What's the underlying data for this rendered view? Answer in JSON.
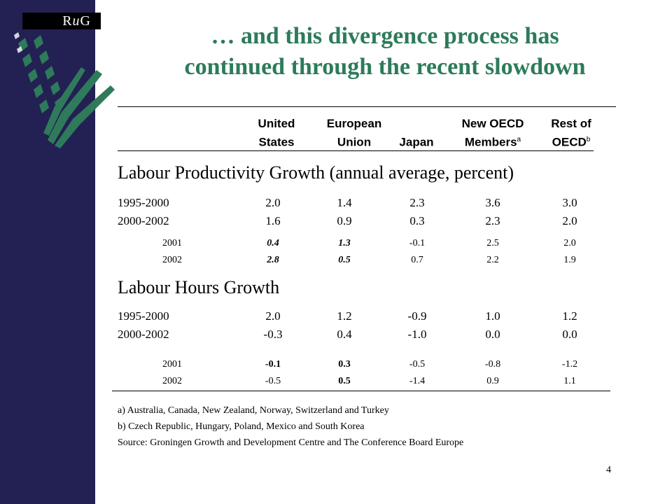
{
  "logo": {
    "text_prefix": "R",
    "text_italic": "u",
    "text_suffix": "G"
  },
  "title": {
    "line1": "… and this divergence process has",
    "line2": "continued through the recent slowdown"
  },
  "columns": [
    {
      "line1": "United",
      "line2": "States",
      "sup": ""
    },
    {
      "line1": "European",
      "line2": "Union",
      "sup": ""
    },
    {
      "line1": "",
      "line2": "Japan",
      "sup": ""
    },
    {
      "line1": "New OECD",
      "line2": "Members",
      "sup": "a"
    },
    {
      "line1": "Rest of",
      "line2": "OECD",
      "sup": "b"
    }
  ],
  "sections": [
    {
      "title": "Labour Productivity Growth (annual average, percent)",
      "rows": [
        {
          "label": "1995-2000",
          "values": [
            "2.0",
            "1.4",
            "2.3",
            "3.6",
            "3.0"
          ]
        },
        {
          "label": "2000-2002",
          "values": [
            "1.6",
            "0.9",
            "0.3",
            "2.3",
            "2.0"
          ]
        },
        {
          "label": "2001",
          "values": [
            "0.4",
            "1.3",
            "-0.1",
            "2.5",
            "2.0"
          ]
        },
        {
          "label": "2002",
          "values": [
            "2.8",
            "0.5",
            "0.7",
            "2.2",
            "1.9"
          ]
        }
      ]
    },
    {
      "title": "Labour Hours Growth",
      "rows": [
        {
          "label": "1995-2000",
          "values": [
            "2.0",
            "1.2",
            "-0.9",
            "1.0",
            "1.2"
          ]
        },
        {
          "label": "2000-2002",
          "values": [
            "-0.3",
            "0.4",
            "-1.0",
            "0.0",
            "0.0"
          ]
        },
        {
          "label": "2001",
          "values": [
            "-0.1",
            "0.3",
            "-0.5",
            "-0.8",
            "-1.2"
          ]
        },
        {
          "label": "2002",
          "values": [
            "-0.5",
            "0.5",
            "-1.4",
            "0.9",
            "1.1"
          ]
        }
      ]
    }
  ],
  "footnotes": {
    "a": "a) Australia, Canada, New Zealand, Norway, Switzerland and Turkey",
    "b": "b) Czech Republic, Hungary, Poland, Mexico and South Korea",
    "source": "Source: Groningen Growth and Development Centre and The Conference Board Europe"
  },
  "page_number": "4",
  "colors": {
    "sidebar": "#232053",
    "title": "#2d7b5a",
    "wheat": "#2f7a5a"
  }
}
